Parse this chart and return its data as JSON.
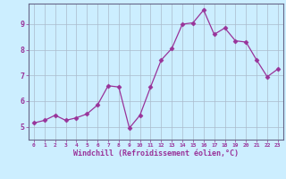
{
  "x": [
    0,
    1,
    2,
    3,
    4,
    5,
    6,
    7,
    8,
    9,
    10,
    11,
    12,
    13,
    14,
    15,
    16,
    17,
    18,
    19,
    20,
    21,
    22,
    23
  ],
  "y": [
    5.15,
    5.25,
    5.45,
    5.25,
    5.35,
    5.5,
    5.85,
    6.6,
    6.55,
    4.95,
    5.45,
    6.55,
    7.6,
    8.05,
    9.0,
    9.05,
    9.55,
    8.6,
    8.85,
    8.35,
    8.3,
    7.6,
    6.95,
    7.25
  ],
  "line_color": "#993399",
  "marker": "D",
  "marker_size": 2.5,
  "bg_color": "#cceeff",
  "grid_color": "#aabbcc",
  "tick_label_color": "#993399",
  "xlabel": "Windchill (Refroidissement éolien,°C)",
  "ylabel_ticks": [
    5,
    6,
    7,
    8,
    9
  ],
  "xlim": [
    -0.5,
    23.5
  ],
  "ylim": [
    4.5,
    9.8
  ],
  "title": ""
}
